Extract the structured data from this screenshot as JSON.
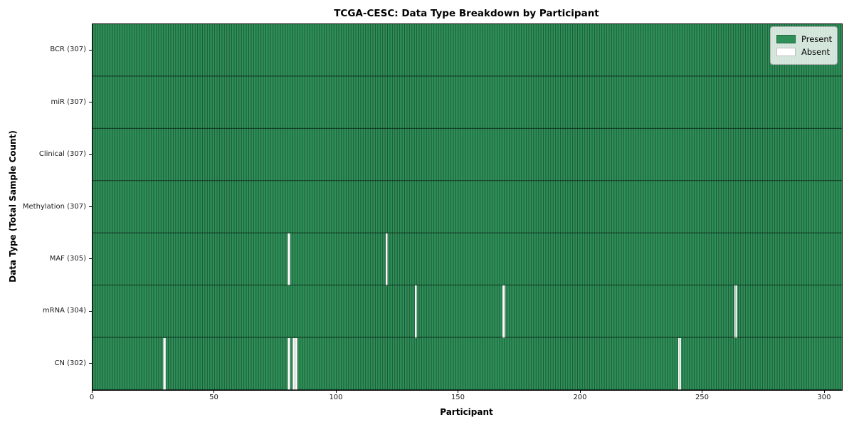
{
  "figure": {
    "title": "TCGA-CESC: Data Type Breakdown by Participant",
    "xlabel": "Participant",
    "ylabel": "Data Type (Total Sample Count)"
  },
  "chart_data": {
    "type": "heatmap",
    "title": "TCGA-CESC: Data Type Breakdown by Participant",
    "xlabel": "Participant",
    "ylabel": "Data Type (Total Sample Count)",
    "x_ticks": [
      0,
      50,
      100,
      150,
      200,
      250,
      300
    ],
    "x_range": [
      0,
      307
    ],
    "n_participants": 307,
    "grid": "cell-edges",
    "legend_position": "upper-right",
    "colors": {
      "present": "#2e8f58",
      "absent": "#ffffff"
    },
    "legend_entries": [
      {
        "label": "Present",
        "color": "#2e8f58"
      },
      {
        "label": "Absent",
        "color": "#ffffff"
      }
    ],
    "rows": [
      {
        "name": "BCR",
        "label": "BCR (307)",
        "total": 307,
        "absent_participants": []
      },
      {
        "name": "miR",
        "label": "miR (307)",
        "total": 307,
        "absent_participants": []
      },
      {
        "name": "Clinical",
        "label": "Clinical (307)",
        "total": 307,
        "absent_participants": []
      },
      {
        "name": "Methylation",
        "label": "Methylation (307)",
        "total": 307,
        "absent_participants": []
      },
      {
        "name": "MAF",
        "label": "MAF (305)",
        "total": 305,
        "absent_participants": [
          80,
          120
        ]
      },
      {
        "name": "mRNA",
        "label": "mRNA (304)",
        "total": 304,
        "absent_participants": [
          132,
          168,
          263
        ]
      },
      {
        "name": "CN",
        "label": "CN (302)",
        "total": 302,
        "absent_participants": [
          29,
          80,
          82,
          83,
          240
        ]
      }
    ]
  }
}
